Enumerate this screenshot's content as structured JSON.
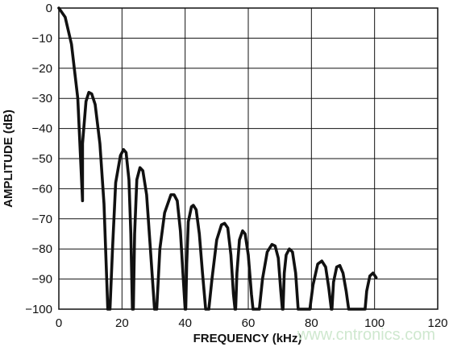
{
  "chart_data": {
    "type": "line",
    "title": "",
    "xlabel": "FREQUENCY (kHz)",
    "ylabel": "AMPLITUDE (dB)",
    "xlim": [
      0,
      120
    ],
    "ylim": [
      -100,
      0
    ],
    "xticks": [
      0,
      20,
      40,
      60,
      80,
      100,
      120
    ],
    "yticks": [
      0,
      -10,
      -20,
      -30,
      -40,
      -50,
      -60,
      -70,
      -80,
      -90,
      -100
    ],
    "grid": true,
    "legend": "none",
    "series": [
      {
        "color": "#111111",
        "points": [
          [
            0.0,
            0
          ],
          [
            2.0,
            -3
          ],
          [
            4.0,
            -12
          ],
          [
            6.0,
            -30
          ],
          [
            7.5,
            -64
          ],
          [
            7.5,
            -45
          ],
          [
            8.6,
            -31
          ],
          [
            9.5,
            -28
          ],
          [
            10.4,
            -28.5
          ],
          [
            11.5,
            -32
          ],
          [
            13.0,
            -45
          ],
          [
            14.3,
            -65
          ],
          [
            15.5,
            -100
          ],
          [
            16.2,
            -100
          ],
          [
            17.0,
            -80
          ],
          [
            18.0,
            -58
          ],
          [
            19.5,
            -49
          ],
          [
            20.5,
            -47
          ],
          [
            21.3,
            -48
          ],
          [
            22.2,
            -57
          ],
          [
            22.8,
            -75
          ],
          [
            23.3,
            -100
          ],
          [
            23.6,
            -100
          ],
          [
            24.0,
            -75
          ],
          [
            24.7,
            -57
          ],
          [
            25.7,
            -53
          ],
          [
            26.6,
            -54
          ],
          [
            27.8,
            -62
          ],
          [
            29.0,
            -80
          ],
          [
            30.3,
            -100
          ],
          [
            31.0,
            -100
          ],
          [
            32.0,
            -80
          ],
          [
            33.5,
            -68
          ],
          [
            35.5,
            -62
          ],
          [
            36.5,
            -62
          ],
          [
            37.5,
            -64
          ],
          [
            38.5,
            -74
          ],
          [
            39.3,
            -88
          ],
          [
            40.0,
            -100
          ],
          [
            40.2,
            -100
          ],
          [
            40.5,
            -85
          ],
          [
            41.0,
            -71
          ],
          [
            42.0,
            -66
          ],
          [
            42.6,
            -65.5
          ],
          [
            43.5,
            -67
          ],
          [
            44.5,
            -75
          ],
          [
            45.5,
            -88
          ],
          [
            46.5,
            -100
          ],
          [
            47.5,
            -100
          ],
          [
            48.5,
            -90
          ],
          [
            50.0,
            -77
          ],
          [
            51.5,
            -72
          ],
          [
            52.5,
            -71.5
          ],
          [
            53.5,
            -73
          ],
          [
            54.5,
            -82
          ],
          [
            55.3,
            -95
          ],
          [
            55.8,
            -100
          ],
          [
            56.0,
            -100
          ],
          [
            56.4,
            -88
          ],
          [
            57.2,
            -77
          ],
          [
            58.2,
            -74
          ],
          [
            59.0,
            -75
          ],
          [
            60.0,
            -82
          ],
          [
            61.0,
            -95
          ],
          [
            61.5,
            -100
          ],
          [
            63.5,
            -100
          ],
          [
            64.5,
            -90
          ],
          [
            66.0,
            -81
          ],
          [
            67.5,
            -78.5
          ],
          [
            68.5,
            -79
          ],
          [
            69.5,
            -83
          ],
          [
            70.3,
            -94
          ],
          [
            70.8,
            -100
          ],
          [
            71.0,
            -100
          ],
          [
            71.4,
            -88
          ],
          [
            72.0,
            -82
          ],
          [
            73.0,
            -80
          ],
          [
            74.0,
            -81
          ],
          [
            75.0,
            -88
          ],
          [
            75.8,
            -100
          ],
          [
            79.5,
            -100
          ],
          [
            80.5,
            -92
          ],
          [
            82.0,
            -85
          ],
          [
            83.3,
            -84
          ],
          [
            84.5,
            -86
          ],
          [
            85.5,
            -93
          ],
          [
            86.3,
            -100
          ],
          [
            86.5,
            -100
          ],
          [
            87.0,
            -91
          ],
          [
            88.0,
            -86
          ],
          [
            89.0,
            -85.5
          ],
          [
            90.0,
            -88
          ],
          [
            91.0,
            -94
          ],
          [
            91.8,
            -100
          ],
          [
            97.0,
            -100
          ],
          [
            97.5,
            -94
          ],
          [
            98.5,
            -89
          ],
          [
            99.5,
            -88
          ],
          [
            100.5,
            -89.5
          ]
        ]
      }
    ]
  },
  "watermark": "www.cntronics.com"
}
